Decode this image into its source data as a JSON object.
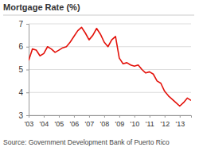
{
  "chart_data": {
    "type": "line",
    "title": "Mortgage Rate (%)",
    "source": "Source: Government Development Bank of Puerto Rico",
    "x": [
      2003,
      2003.25,
      2003.5,
      2003.75,
      2004,
      2004.25,
      2004.5,
      2004.75,
      2005,
      2005.25,
      2005.5,
      2005.75,
      2006,
      2006.25,
      2006.5,
      2006.75,
      2007,
      2007.25,
      2007.5,
      2007.75,
      2008,
      2008.25,
      2008.5,
      2008.75,
      2009,
      2009.25,
      2009.5,
      2009.75,
      2010,
      2010.25,
      2010.5,
      2010.75,
      2011,
      2011.25,
      2011.5,
      2011.75,
      2012,
      2012.25,
      2012.5,
      2012.75,
      2013,
      2013.25,
      2013.5,
      2013.75
    ],
    "values": [
      5.4,
      5.9,
      5.85,
      5.6,
      5.7,
      6.0,
      5.9,
      5.75,
      5.85,
      5.95,
      6.0,
      6.2,
      6.45,
      6.7,
      6.85,
      6.6,
      6.3,
      6.5,
      6.8,
      6.55,
      6.2,
      6.0,
      6.3,
      6.45,
      5.5,
      5.25,
      5.3,
      5.2,
      5.15,
      5.2,
      5.0,
      4.85,
      4.9,
      4.8,
      4.5,
      4.4,
      4.05,
      3.85,
      3.7,
      3.55,
      3.4,
      3.55,
      3.75,
      3.65
    ],
    "color": "#e3120b",
    "xlim": [
      2003,
      2013.75
    ],
    "xticks": [
      {
        "value": 2003,
        "label": "'03"
      },
      {
        "value": 2004,
        "label": "'04"
      },
      {
        "value": 2005,
        "label": "'05"
      },
      {
        "value": 2006,
        "label": "'06"
      },
      {
        "value": 2007,
        "label": "'07"
      },
      {
        "value": 2008,
        "label": "'08"
      },
      {
        "value": 2009,
        "label": "'09"
      },
      {
        "value": 2010,
        "label": "'10"
      },
      {
        "value": 2011,
        "label": "'11"
      },
      {
        "value": 2012,
        "label": "'12"
      },
      {
        "value": 2013,
        "label": "'13"
      }
    ],
    "ylim": [
      3,
      7
    ],
    "yticks": [
      3,
      4,
      5,
      6,
      7
    ],
    "grid": true
  }
}
